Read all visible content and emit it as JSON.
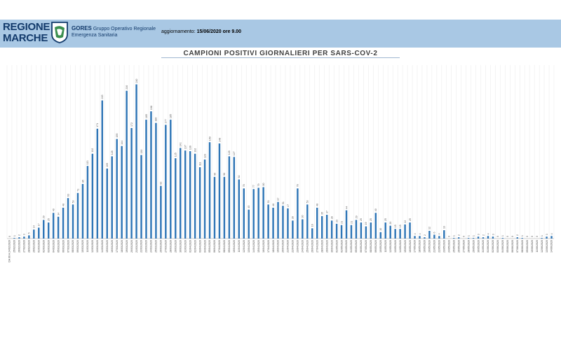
{
  "header": {
    "brand_line1": "REGIONE",
    "brand_line2": "MARCHE",
    "gores_name": "GORES",
    "gores_desc1": "Gruppo Operativo Regionale",
    "gores_desc2": "Emergenza Sanitaria",
    "update_label": "aggiornamento:",
    "update_value": "15/06/2020 ore 9.00",
    "bar_color": "#a9c8e4",
    "brand_color": "#123a6b"
  },
  "chart_data": {
    "type": "bar",
    "title": "CAMPIONI POSITIVI GIORNALIERI PER SARS-COV-2",
    "xlabel": "",
    "ylabel": "",
    "ylim": [
      0,
      270
    ],
    "grid": true,
    "bar_color": "#2e75b6",
    "categories": [
      "DA 06 A 24/02/2020",
      "25/02/2020",
      "26/02/2020",
      "27/02/2020",
      "28/02/2020",
      "29/02/2020",
      "01/03/2020",
      "02/03/2020",
      "03/03/2020",
      "04/03/2020",
      "05/03/2020",
      "06/03/2020",
      "07/03/2020",
      "08/03/2020",
      "09/03/2020",
      "10/03/2020",
      "11/03/2020",
      "12/03/2020",
      "13/03/2020",
      "14/03/2020",
      "15/03/2020",
      "16/03/2020",
      "17/03/2020",
      "18/03/2020",
      "19/03/2020",
      "20/03/2020",
      "21/03/2020",
      "22/03/2020",
      "23/03/2020",
      "24/03/2020",
      "25/03/2020",
      "26/03/2020",
      "27/03/2020",
      "28/03/2020",
      "29/03/2020",
      "30/03/2020",
      "31/03/2020",
      "01/04/2020",
      "02/04/2020",
      "03/04/2020",
      "04/04/2020",
      "05/04/2020",
      "06/04/2020",
      "07/04/2020",
      "08/04/2020",
      "09/04/2020",
      "10/04/2020",
      "11/04/2020",
      "12/04/2020",
      "13/04/2020",
      "14/04/2020",
      "15/04/2020",
      "16/04/2020",
      "17/04/2020",
      "18/04/2020",
      "19/04/2020",
      "20/04/2020",
      "21/04/2020",
      "22/04/2020",
      "23/04/2020",
      "24/04/2020",
      "25/04/2020",
      "26/04/2020",
      "27/04/2020",
      "28/04/2020",
      "29/04/2020",
      "30/04/2020",
      "01/05/2020",
      "02/05/2020",
      "03/05/2020",
      "04/05/2020",
      "05/05/2020",
      "06/05/2020",
      "07/05/2020",
      "08/05/2020",
      "09/05/2020",
      "10/05/2020",
      "11/05/2020",
      "12/05/2020",
      "13/05/2020",
      "14/05/2020",
      "15/05/2020",
      "16/05/2020",
      "17/05/2020",
      "18/05/2020",
      "19/05/2020",
      "20/05/2020",
      "21/05/2020",
      "22/05/2020",
      "23/05/2020",
      "24/05/2020",
      "25/05/2020",
      "26/05/2020",
      "27/05/2020",
      "28/05/2020",
      "29/05/2020",
      "30/05/2020",
      "31/05/2020",
      "01/06/2020",
      "02/06/2020",
      "03/06/2020",
      "04/06/2020",
      "05/06/2020",
      "06/06/2020",
      "07/06/2020",
      "08/06/2020",
      "09/06/2020",
      "10/06/2020",
      "11/06/2020",
      "12/06/2020",
      "13/06/2020",
      "14/06/2020"
    ],
    "values": [
      0,
      1,
      2,
      3,
      5,
      14,
      17,
      29,
      25,
      40,
      34,
      48,
      63,
      53,
      71,
      85,
      113,
      132,
      171,
      215,
      109,
      128,
      155,
      144,
      230,
      172,
      240,
      130,
      185,
      198,
      180,
      82,
      177,
      185,
      125,
      141,
      137,
      136,
      132,
      111,
      123,
      150,
      96,
      148,
      96,
      128,
      127,
      92,
      78,
      45,
      77,
      79,
      80,
      53,
      48,
      57,
      51,
      47,
      28,
      78,
      30,
      53,
      16,
      48,
      35,
      37,
      28,
      23,
      21,
      44,
      21,
      29,
      25,
      19,
      25,
      40,
      10,
      25,
      20,
      15,
      15,
      22,
      25,
      4,
      4,
      2,
      12,
      6,
      4,
      13,
      0,
      1,
      2,
      0,
      1,
      1,
      3,
      2,
      4,
      3,
      0,
      1,
      0,
      0,
      2,
      1,
      0,
      0,
      0,
      1,
      3,
      4
    ]
  }
}
